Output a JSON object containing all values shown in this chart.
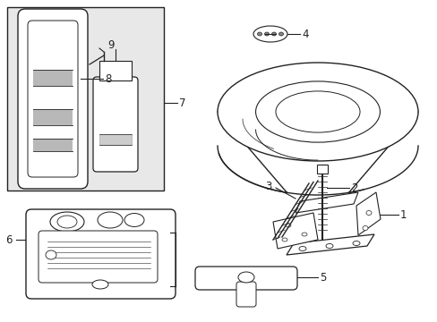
{
  "background_color": "#ffffff",
  "line_color": "#222222",
  "fig_width": 4.89,
  "fig_height": 3.6,
  "dpi": 100,
  "box_fill": "#e8e8e8"
}
